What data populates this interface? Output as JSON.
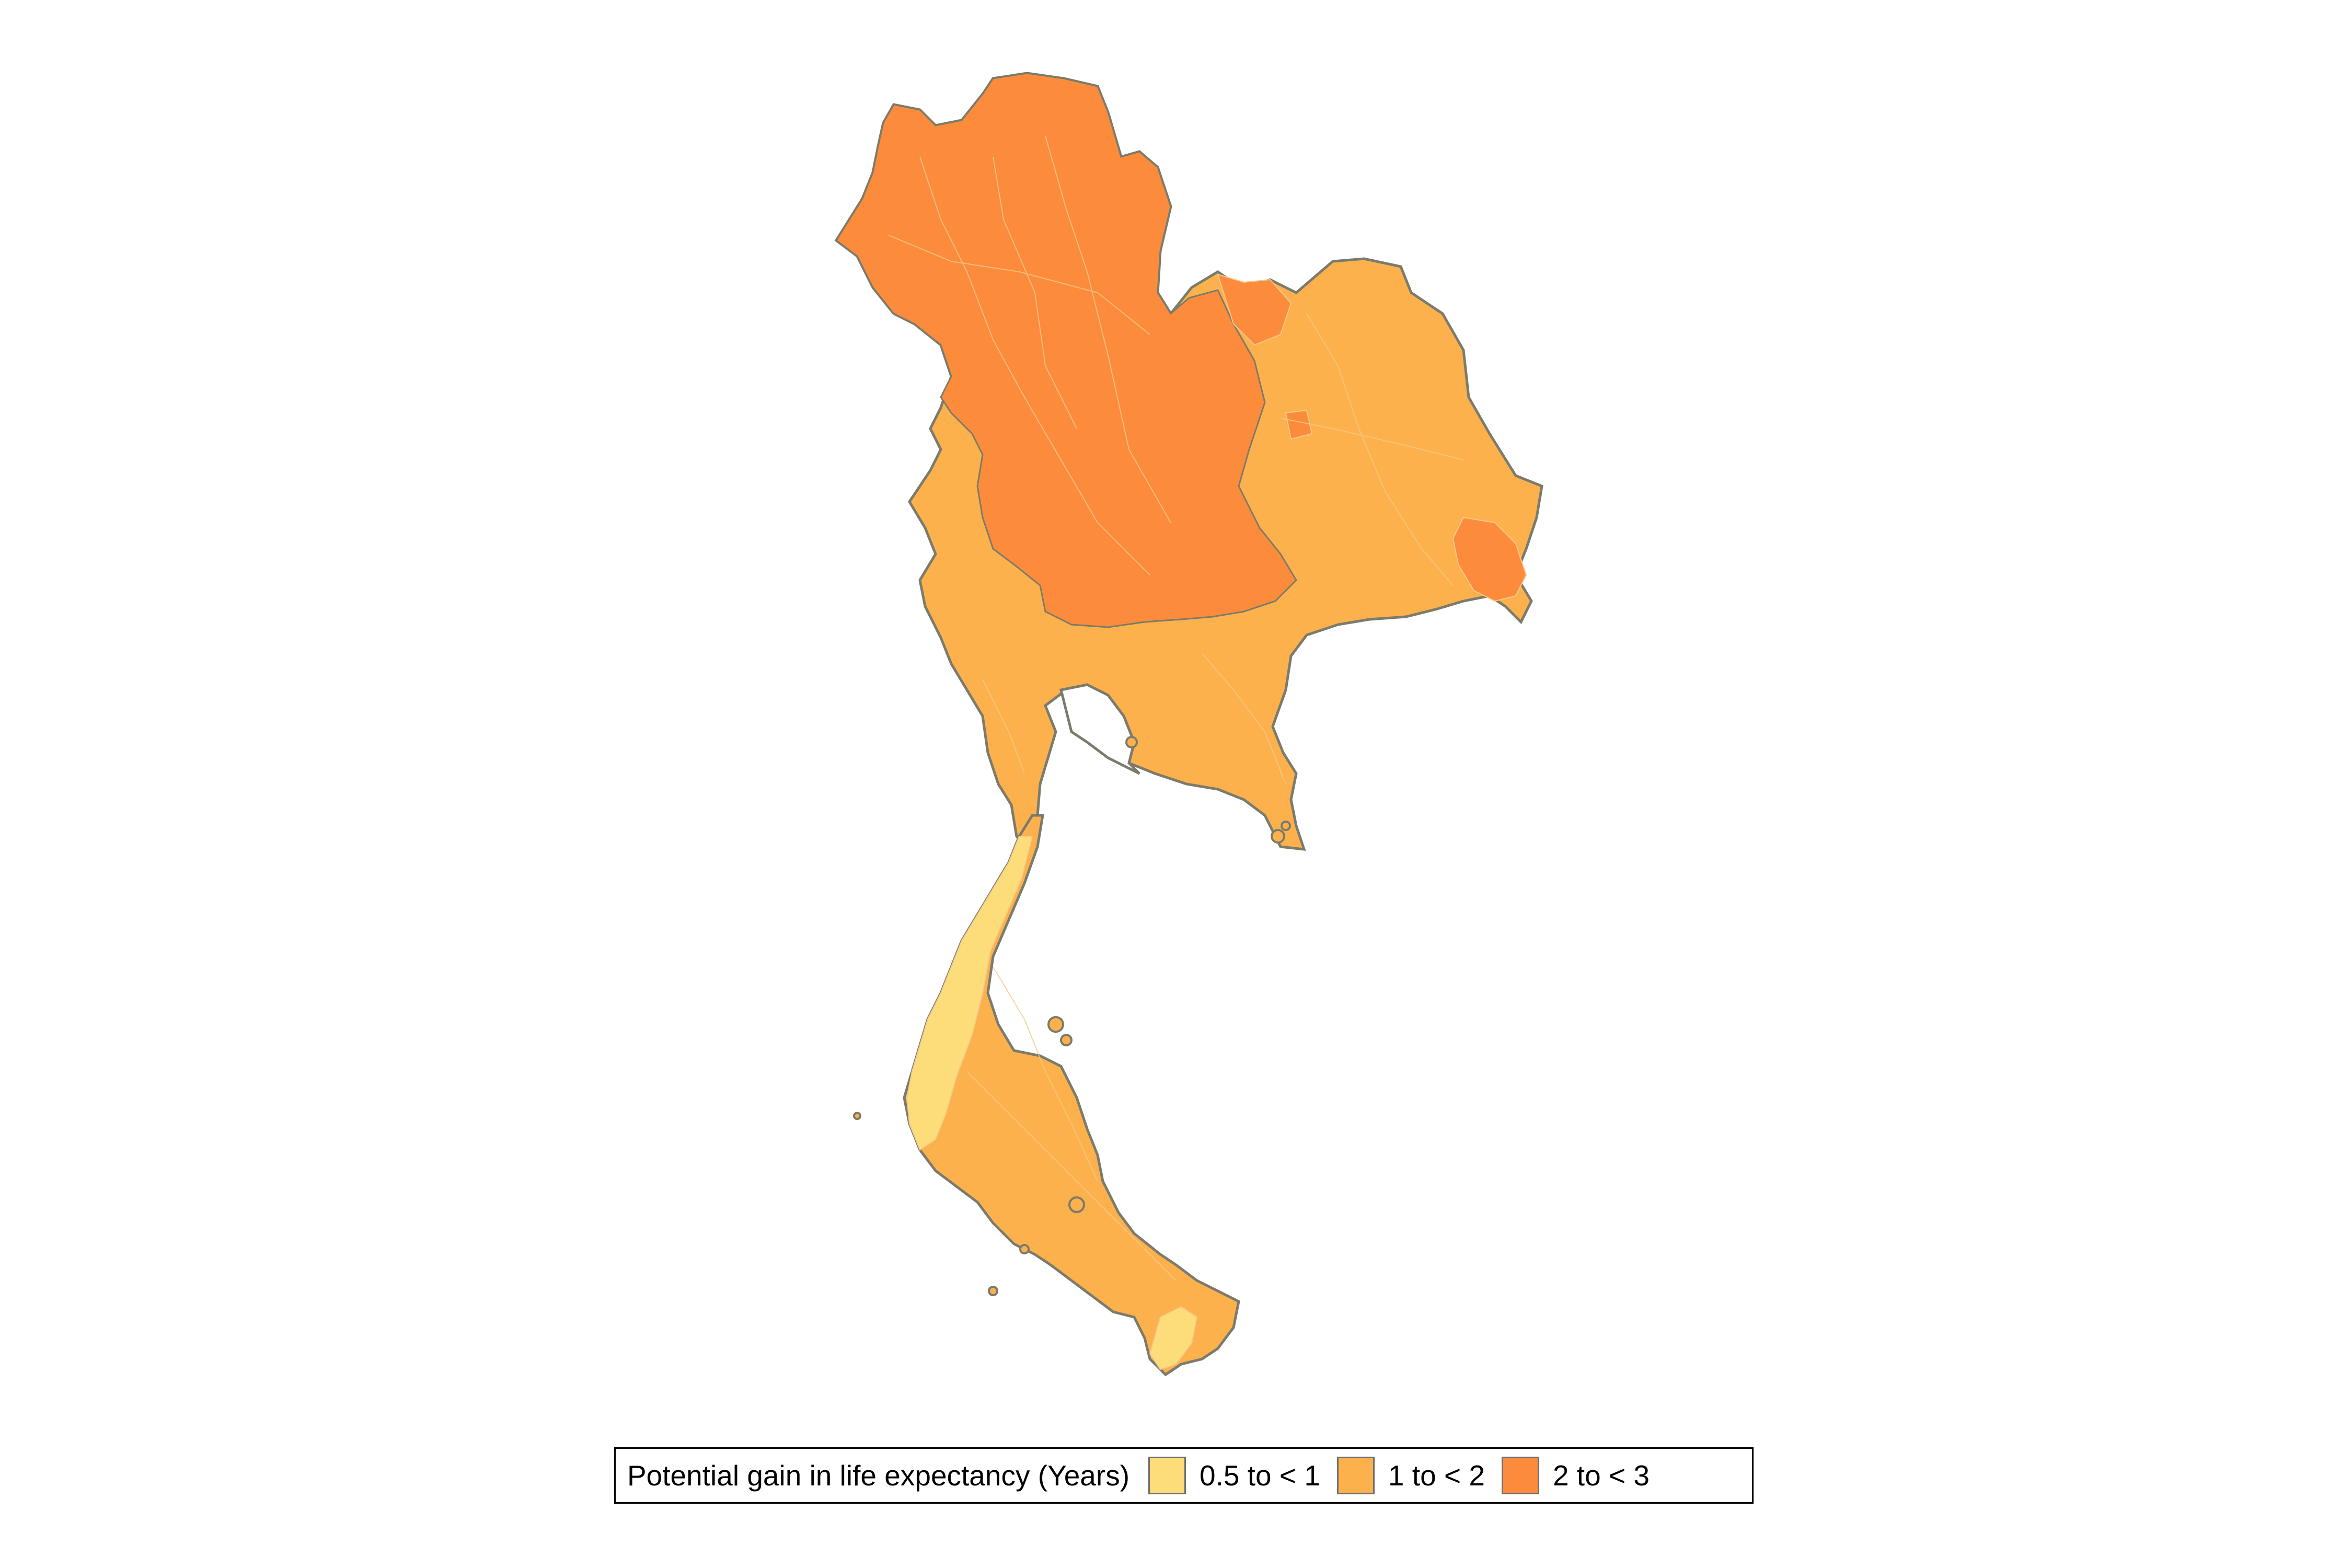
{
  "map": {
    "legend_title": "Potential gain in life expectancy (Years)",
    "legend_items": [
      {
        "label": "0.5 to < 1",
        "color": "#fddc7a"
      },
      {
        "label": "1 to < 2",
        "color": "#fdb14c"
      },
      {
        "label": "2 to < 3",
        "color": "#fc8c3c"
      }
    ],
    "border_color": "#7b7b6b",
    "internal_border_color": "#f2c98a",
    "background": "#ffffff"
  }
}
